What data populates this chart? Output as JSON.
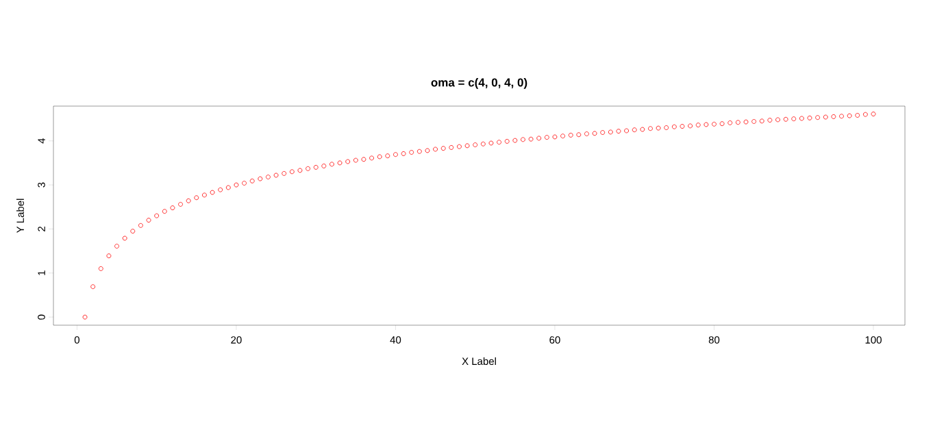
{
  "chart_data": {
    "type": "scatter",
    "title": "oma = c(4, 0, 4, 0)",
    "xlabel": "X Label",
    "ylabel": "Y Label",
    "x": [
      1,
      2,
      3,
      4,
      5,
      6,
      7,
      8,
      9,
      10,
      11,
      12,
      13,
      14,
      15,
      16,
      17,
      18,
      19,
      20,
      21,
      22,
      23,
      24,
      25,
      26,
      27,
      28,
      29,
      30,
      31,
      32,
      33,
      34,
      35,
      36,
      37,
      38,
      39,
      40,
      41,
      42,
      43,
      44,
      45,
      46,
      47,
      48,
      49,
      50,
      51,
      52,
      53,
      54,
      55,
      56,
      57,
      58,
      59,
      60,
      61,
      62,
      63,
      64,
      65,
      66,
      67,
      68,
      69,
      70,
      71,
      72,
      73,
      74,
      75,
      76,
      77,
      78,
      79,
      80,
      81,
      82,
      83,
      84,
      85,
      86,
      87,
      88,
      89,
      90,
      91,
      92,
      93,
      94,
      95,
      96,
      97,
      98,
      99,
      100
    ],
    "values": [
      0.0,
      0.69,
      1.1,
      1.39,
      1.61,
      1.79,
      1.95,
      2.08,
      2.2,
      2.3,
      2.4,
      2.48,
      2.56,
      2.64,
      2.71,
      2.77,
      2.83,
      2.89,
      2.94,
      3.0,
      3.04,
      3.09,
      3.14,
      3.18,
      3.22,
      3.26,
      3.3,
      3.33,
      3.37,
      3.4,
      3.43,
      3.47,
      3.5,
      3.53,
      3.56,
      3.58,
      3.61,
      3.64,
      3.66,
      3.69,
      3.71,
      3.74,
      3.76,
      3.78,
      3.81,
      3.83,
      3.85,
      3.87,
      3.89,
      3.91,
      3.93,
      3.95,
      3.97,
      3.99,
      4.01,
      4.03,
      4.04,
      4.06,
      4.08,
      4.09,
      4.11,
      4.13,
      4.14,
      4.16,
      4.17,
      4.19,
      4.2,
      4.22,
      4.23,
      4.25,
      4.26,
      4.28,
      4.29,
      4.3,
      4.32,
      4.33,
      4.34,
      4.36,
      4.37,
      4.38,
      4.39,
      4.41,
      4.42,
      4.43,
      4.44,
      4.45,
      4.47,
      4.48,
      4.49,
      4.5,
      4.51,
      4.52,
      4.53,
      4.54,
      4.55,
      4.56,
      4.57,
      4.58,
      4.6,
      4.61
    ],
    "color": "#ff0000",
    "marker": "circle",
    "xlim": [
      -2.96,
      103.96
    ],
    "ylim": [
      -0.184,
      4.789
    ],
    "xticks": [
      0,
      20,
      40,
      60,
      80,
      100
    ],
    "yticks": [
      0,
      1,
      2,
      3,
      4
    ]
  }
}
